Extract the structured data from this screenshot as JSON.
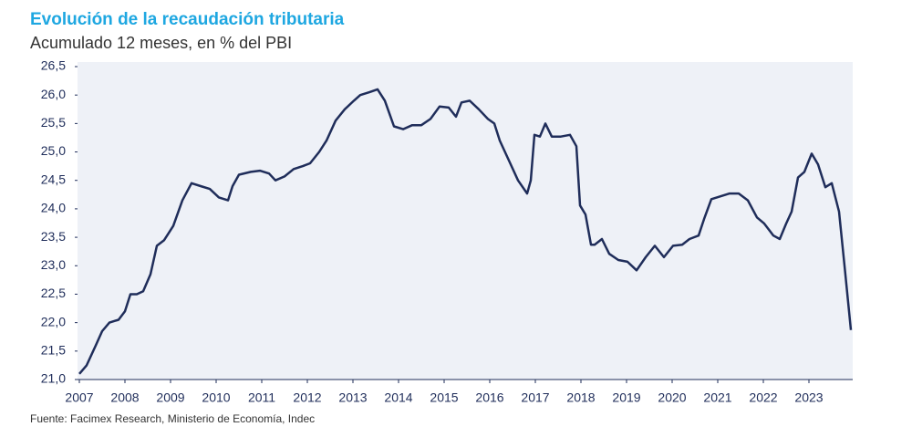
{
  "chart_data": {
    "type": "line",
    "title": "Evolución de la recaudación tributaria",
    "subtitle": "Acumulado 12 meses, en % del PBI",
    "source": "Fuente: Facimex Research, Ministerio de Economía, Indec",
    "color": "#1f2d5a",
    "x": [
      2007.0,
      2007.16,
      2007.36,
      2007.5,
      2007.66,
      2007.86,
      2008.0,
      2008.12,
      2008.26,
      2008.4,
      2008.56,
      2008.7,
      2008.86,
      2009.06,
      2009.26,
      2009.46,
      2009.66,
      2009.86,
      2010.06,
      2010.26,
      2010.36,
      2010.5,
      2010.76,
      2010.96,
      2011.16,
      2011.3,
      2011.5,
      2011.7,
      2011.9,
      2012.06,
      2012.26,
      2012.42,
      2012.62,
      2012.82,
      2013.02,
      2013.16,
      2013.36,
      2013.54,
      2013.7,
      2013.9,
      2014.1,
      2014.3,
      2014.5,
      2014.7,
      2014.9,
      2015.1,
      2015.26,
      2015.38,
      2015.56,
      2015.76,
      2015.96,
      2016.1,
      2016.22,
      2016.42,
      2016.62,
      2016.82,
      2016.9,
      2016.98,
      2017.1,
      2017.22,
      2017.36,
      2017.56,
      2017.76,
      2017.9,
      2017.98,
      2018.1,
      2018.22,
      2018.3,
      2018.46,
      2018.62,
      2018.82,
      2019.02,
      2019.22,
      2019.42,
      2019.62,
      2019.82,
      2020.02,
      2020.22,
      2020.38,
      2020.58,
      2020.7,
      2020.86,
      2021.06,
      2021.26,
      2021.46,
      2021.66,
      2021.86,
      2022.02,
      2022.22,
      2022.36,
      2022.5,
      2022.62,
      2022.76,
      2022.9,
      2023.06,
      2023.2,
      2023.36,
      2023.5,
      2023.66,
      2023.78,
      2023.92
    ],
    "values": [
      21.1,
      21.25,
      21.6,
      21.85,
      22.0,
      22.05,
      22.2,
      22.5,
      22.5,
      22.55,
      22.85,
      23.35,
      23.45,
      23.7,
      24.15,
      24.45,
      24.4,
      24.35,
      24.2,
      24.15,
      24.4,
      24.6,
      24.65,
      24.67,
      24.62,
      24.5,
      24.57,
      24.7,
      24.75,
      24.8,
      25.0,
      25.2,
      25.55,
      25.75,
      25.9,
      26.0,
      26.05,
      26.1,
      25.9,
      25.45,
      25.4,
      25.47,
      25.47,
      25.58,
      25.8,
      25.78,
      25.62,
      25.87,
      25.9,
      25.75,
      25.58,
      25.5,
      25.2,
      24.85,
      24.5,
      24.27,
      24.5,
      25.3,
      25.27,
      25.5,
      25.27,
      25.27,
      25.3,
      25.1,
      24.06,
      23.9,
      23.37,
      23.37,
      23.47,
      23.21,
      23.1,
      23.07,
      22.92,
      23.15,
      23.35,
      23.15,
      23.35,
      23.37,
      23.47,
      23.53,
      23.82,
      24.17,
      24.22,
      24.27,
      24.27,
      24.15,
      23.85,
      23.74,
      23.53,
      23.47,
      23.74,
      23.95,
      24.55,
      24.65,
      24.97,
      24.78,
      24.38,
      24.45,
      23.95,
      23.0,
      21.87
    ],
    "xlim": [
      2007,
      2024
    ],
    "xticks": [
      2007,
      2008,
      2009,
      2010,
      2011,
      2012,
      2013,
      2014,
      2015,
      2016,
      2017,
      2018,
      2019,
      2020,
      2021,
      2022,
      2023
    ],
    "ylim": [
      21,
      26.5
    ],
    "yticks": [
      {
        "value": 21,
        "label": "21,0"
      },
      {
        "value": 21.5,
        "label": "21,5"
      },
      {
        "value": 22,
        "label": "22,0"
      },
      {
        "value": 22.5,
        "label": "22,5"
      },
      {
        "value": 23,
        "label": "23,0"
      },
      {
        "value": 23.5,
        "label": "23,5"
      },
      {
        "value": 24,
        "label": "24,0"
      },
      {
        "value": 24.5,
        "label": "24,5"
      },
      {
        "value": 25,
        "label": "25,0"
      },
      {
        "value": 25.5,
        "label": "25,5"
      },
      {
        "value": 26,
        "label": "26,0"
      },
      {
        "value": 26.5,
        "label": "26,5"
      }
    ]
  }
}
